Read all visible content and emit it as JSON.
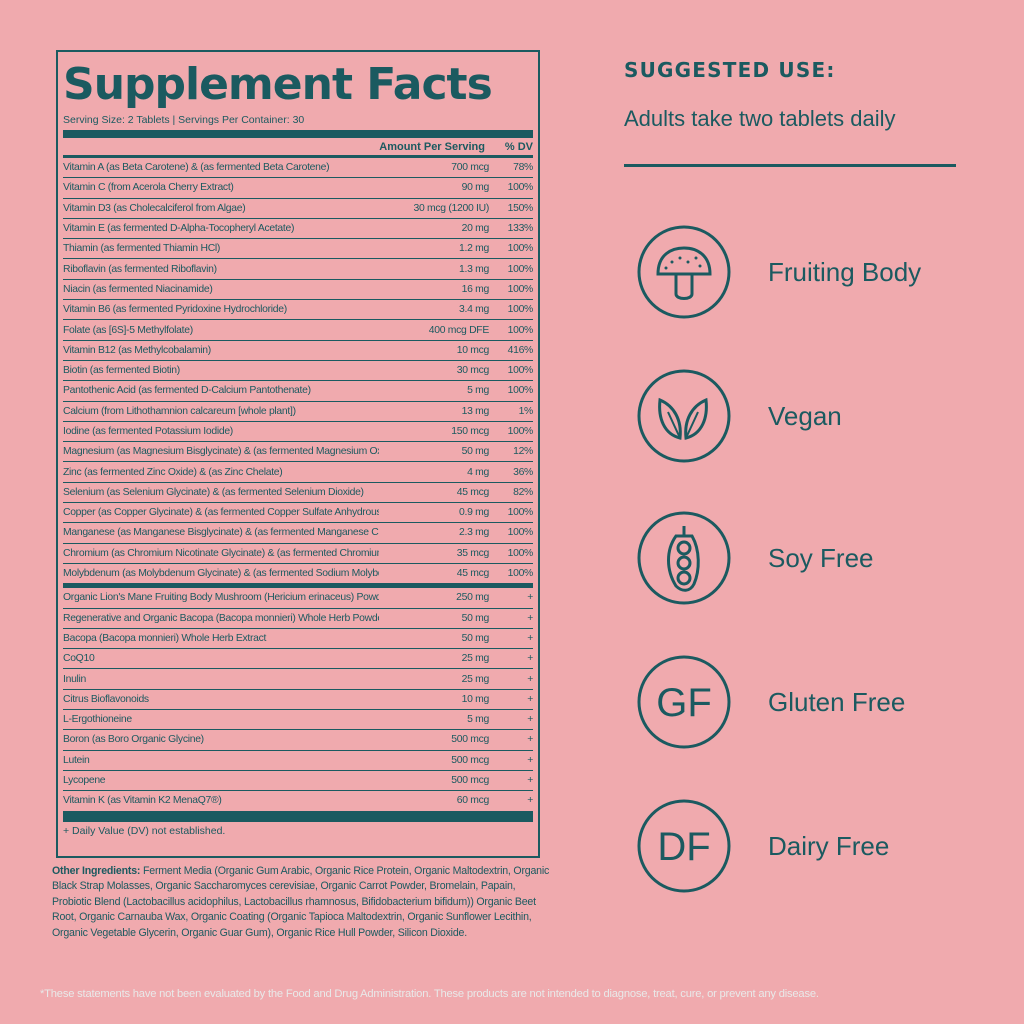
{
  "facts": {
    "title": "Supplement Facts",
    "serving": "Serving Size: 2 Tablets | Servings Per Container: 30",
    "header_amount": "Amount Per Serving",
    "header_dv": "% DV",
    "rows": [
      {
        "name": "Vitamin A (as Beta Carotene) & (as fermented Beta Carotene)",
        "amount": "700 mcg",
        "dv": "78%"
      },
      {
        "name": "Vitamin C (from Acerola Cherry Extract)",
        "amount": "90 mg",
        "dv": "100%"
      },
      {
        "name": "Vitamin D3 (as Cholecalciferol from Algae)",
        "amount": "30 mcg (1200 IU)",
        "dv": "150%"
      },
      {
        "name": "Vitamin E (as fermented D-Alpha-Tocopheryl Acetate)",
        "amount": "20 mg",
        "dv": "133%"
      },
      {
        "name": "Thiamin (as fermented Thiamin HCl)",
        "amount": "1.2 mg",
        "dv": "100%"
      },
      {
        "name": "Riboflavin (as fermented Riboflavin)",
        "amount": "1.3 mg",
        "dv": "100%"
      },
      {
        "name": "Niacin (as fermented Niacinamide)",
        "amount": "16 mg",
        "dv": "100%"
      },
      {
        "name": "Vitamin B6 (as fermented Pyridoxine Hydrochloride)",
        "amount": "3.4 mg",
        "dv": "100%"
      },
      {
        "name": "Folate (as [6S]-5 Methylfolate)",
        "amount": "400 mcg DFE",
        "dv": "100%"
      },
      {
        "name": "Vitamin B12 (as Methylcobalamin)",
        "amount": "10 mcg",
        "dv": "416%"
      },
      {
        "name": "Biotin (as fermented Biotin)",
        "amount": "30 mcg",
        "dv": "100%"
      },
      {
        "name": "Pantothenic Acid (as fermented D-Calcium Pantothenate)",
        "amount": "5 mg",
        "dv": "100%"
      },
      {
        "name": "Calcium (from Lithothamnion calcareum [whole plant])",
        "amount": "13 mg",
        "dv": "1%"
      },
      {
        "name": "Iodine (as fermented Potassium Iodide)",
        "amount": "150 mcg",
        "dv": "100%"
      },
      {
        "name": "Magnesium (as Magnesium Bisglycinate) &  (as fermented Magnesium Oxide)",
        "amount": "50 mg",
        "dv": "12%"
      },
      {
        "name": "Zinc (as fermented Zinc Oxide) & (as Zinc Chelate)",
        "amount": "4 mg",
        "dv": "36%"
      },
      {
        "name": "Selenium (as Selenium Glycinate) &  (as fermented Selenium Dioxide)",
        "amount": "45 mcg",
        "dv": "82%"
      },
      {
        "name": "Copper (as Copper Glycinate) & (as fermented Copper Sulfate Anhydrous)",
        "amount": "0.9 mg",
        "dv": "100%"
      },
      {
        "name": "Manganese (as Manganese Bisglycinate) & (as fermented Manganese Chloride)",
        "amount": "2.3 mg",
        "dv": "100%"
      },
      {
        "name": "Chromium (as Chromium Nicotinate Glycinate) & (as fermented Chromium Chloride)",
        "amount": "35 mcg",
        "dv": "100%"
      },
      {
        "name": "Molybdenum (as Molybdenum Glycinate) & (as fermented Sodium Molybdate)",
        "amount": "45 mcg",
        "dv": "100%"
      }
    ],
    "rows2": [
      {
        "name": "Organic Lion's Mane Fruiting Body Mushroom (Hericium erinaceus) Powder",
        "amount": "250 mg",
        "dv": "+"
      },
      {
        "name": "Regenerative and Organic Bacopa (Bacopa monnieri) Whole Herb Powder",
        "amount": "50 mg",
        "dv": "+"
      },
      {
        "name": "Bacopa (Bacopa monnieri) Whole Herb Extract",
        "amount": "50 mg",
        "dv": "+"
      },
      {
        "name": "CoQ10",
        "amount": "25 mg",
        "dv": "+"
      },
      {
        "name": "Inulin",
        "amount": "25 mg",
        "dv": "+"
      },
      {
        "name": "Citrus Bioflavonoids",
        "amount": "10 mg",
        "dv": "+"
      },
      {
        "name": "L-Ergothioneine",
        "amount": "5 mg",
        "dv": "+"
      },
      {
        "name": "Boron (as Boro Organic Glycine)",
        "amount": "500 mcg",
        "dv": "+"
      },
      {
        "name": "Lutein",
        "amount": "500 mcg",
        "dv": "+"
      },
      {
        "name": "Lycopene",
        "amount": "500 mcg",
        "dv": "+"
      },
      {
        "name": "Vitamin K (as Vitamin K2 MenaQ7®)",
        "amount": "60 mcg",
        "dv": "+"
      }
    ],
    "footnote": "+ Daily Value (DV) not established."
  },
  "other": {
    "label": "Other Ingredients:",
    "text": "Ferment Media (Organic Gum Arabic, Organic Rice Protein, Organic Maltodextrin, Organic Black Strap Molasses, Organic Saccharomyces cerevisiae, Organic Carrot Powder, Bromelain, Papain, Probiotic Blend (Lactobacillus acidophilus, Lactobacillus rhamnosus, Bifidobacterium bifidum)) Organic Beet Root, Organic Carnauba Wax, Organic Coating (Organic Tapioca Maltodextrin, Organic Sunflower Lecithin, Organic Vegetable Glycerin, Organic Guar Gum), Organic Rice Hull Powder, Silicon Dioxide."
  },
  "disclaimer": "*These statements have not been evaluated by the Food and Drug Administration. These products are not intended to diagnose, treat, cure, or prevent any disease.",
  "use": {
    "title": "SUGGESTED USE:",
    "text": "Adults take two tablets daily"
  },
  "badges": [
    {
      "icon": "mushroom-icon",
      "label": "Fruiting Body"
    },
    {
      "icon": "leaves-icon",
      "label": "Vegan"
    },
    {
      "icon": "soybean-icon",
      "label": "Soy Free"
    },
    {
      "icon": "gf-icon",
      "label": "Gluten Free",
      "glyph": "GF"
    },
    {
      "icon": "df-icon",
      "label": "Dairy Free",
      "glyph": "DF"
    }
  ],
  "colors": {
    "background": "#f0aaae",
    "ink": "#1b5a60"
  }
}
